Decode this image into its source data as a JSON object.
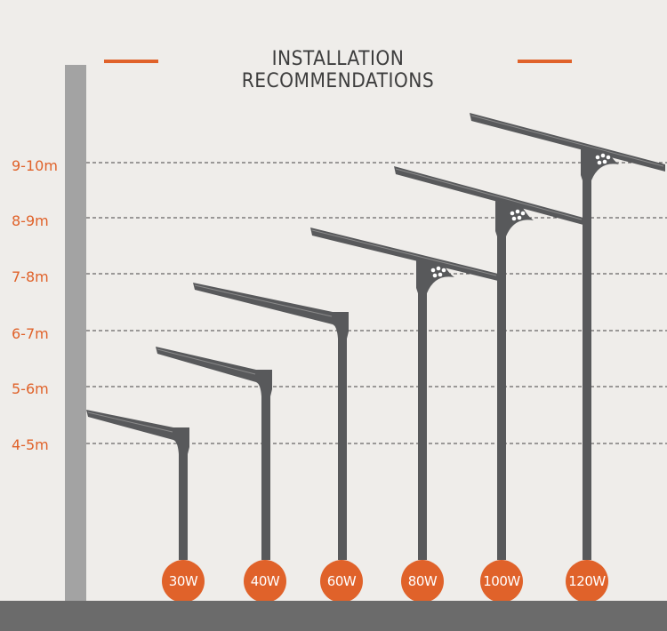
{
  "title": "INSTALLATION RECOMMENDATIONS",
  "colors": {
    "accent": "#e0622a",
    "pole": "#58595b",
    "wall": "#a3a3a3",
    "ground": "#6b6b6b",
    "background": "#efedea"
  },
  "height_levels": [
    "9-10m",
    "8-9m",
    "7-8m",
    "6-7m",
    "5-6m",
    "4-5m"
  ],
  "lamps": [
    {
      "wattage": "30W",
      "height": "4-5m"
    },
    {
      "wattage": "40W",
      "height": "5-6m"
    },
    {
      "wattage": "60W",
      "height": "6-7m"
    },
    {
      "wattage": "80W",
      "height": "7-8m"
    },
    {
      "wattage": "100W",
      "height": "8-9m"
    },
    {
      "wattage": "120W",
      "height": "9-10m"
    }
  ]
}
